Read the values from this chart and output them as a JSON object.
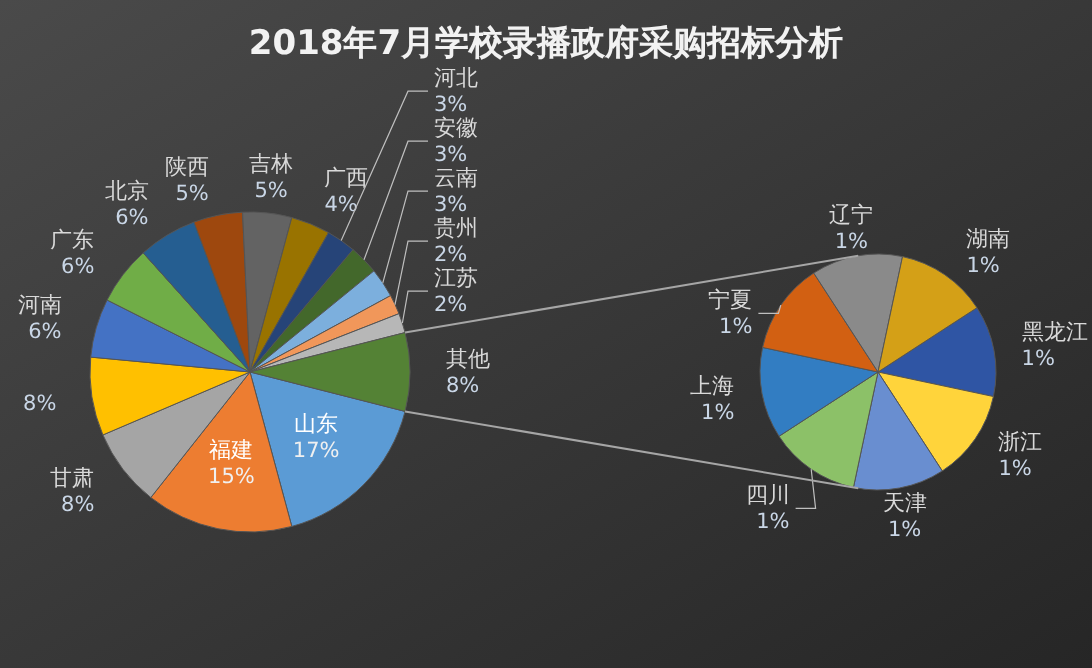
{
  "chart_data": [
    {
      "type": "pie",
      "title": "2018年7月学校录播政府采购招标分析",
      "categories": [
        "山东",
        "福建",
        "甘肃",
        null,
        "河南",
        "广东",
        "北京",
        "陕西",
        "吉林",
        "广西",
        "河北",
        "安徽",
        "云南",
        "贵州",
        "江苏",
        "其他"
      ],
      "values": [
        17,
        15,
        8,
        8,
        6,
        6,
        6,
        5,
        5,
        4,
        3,
        3,
        3,
        2,
        2,
        8
      ],
      "value_labels": [
        "17%",
        "15%",
        "8%",
        "8%",
        "6%",
        "6%",
        "6%",
        "5%",
        "5%",
        "4%",
        "3%",
        "3%",
        "3%",
        "2%",
        "2%",
        "8%"
      ],
      "colors": [
        "#5b9bd5",
        "#ed7d31",
        "#a5a5a5",
        "#ffc000",
        "#4472c4",
        "#70ad47",
        "#255e91",
        "#9e480e",
        "#636363",
        "#997300",
        "#264478",
        "#43682b",
        "#7cafdd",
        "#f1975a",
        "#b7b7b7",
        "#548235"
      ]
    },
    {
      "type": "pie",
      "categories": [
        "黑龙江",
        "浙江",
        "天津",
        "四川",
        "上海",
        "宁夏",
        "辽宁",
        "湖南"
      ],
      "values": [
        1,
        1,
        1,
        1,
        1,
        1,
        1,
        1
      ],
      "value_labels": [
        "1%",
        "1%",
        "1%",
        "1%",
        "1%",
        "1%",
        "1%",
        "1%"
      ],
      "colors": [
        "#2f55a4",
        "#ffd43b",
        "#698ed0",
        "#8cc168",
        "#327dc2",
        "#d26012",
        "#8a8a8a",
        "#d4a017"
      ]
    }
  ]
}
